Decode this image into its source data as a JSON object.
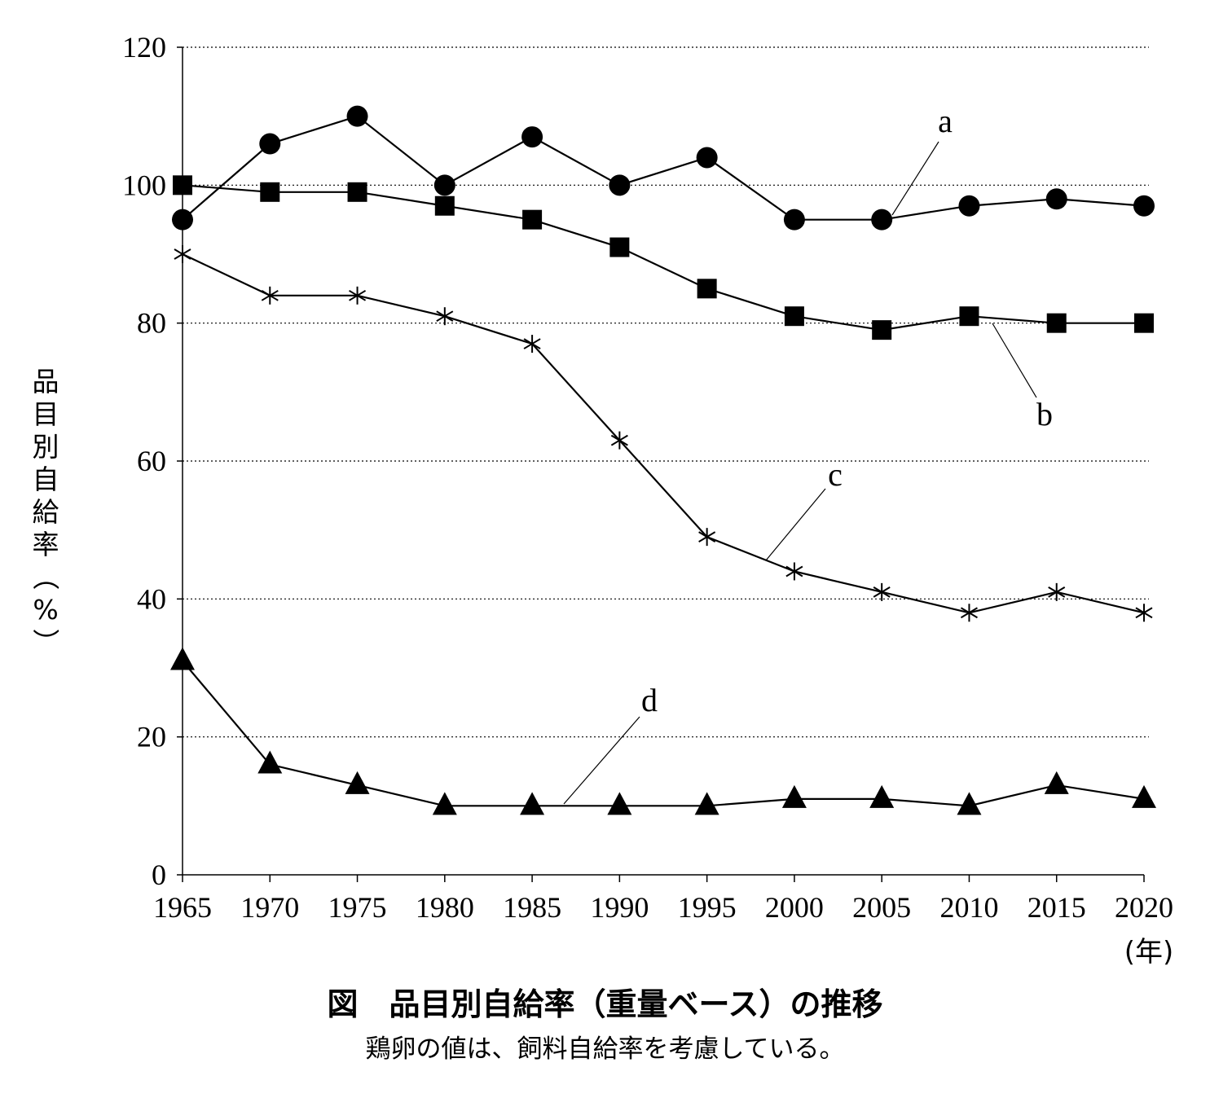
{
  "chart_data": {
    "type": "line",
    "title": "図　品目別自給率（重量ベース）の推移",
    "note": "鶏卵の値は、飼料自給率を考慮している。",
    "ylabel": "品目別自給率（%）",
    "xunit": "(年)",
    "x": [
      1965,
      1970,
      1975,
      1980,
      1985,
      1990,
      1995,
      2000,
      2005,
      2010,
      2015,
      2020
    ],
    "ylim": [
      0,
      120
    ],
    "yticks": [
      0,
      20,
      40,
      60,
      80,
      100,
      120
    ],
    "grid": true,
    "series": [
      {
        "name": "a",
        "marker": "circle",
        "values": [
          95,
          106,
          110,
          100,
          107,
          100,
          104,
          95,
          95,
          97,
          98,
          97
        ]
      },
      {
        "name": "b",
        "marker": "square",
        "values": [
          100,
          99,
          99,
          97,
          95,
          91,
          85,
          81,
          79,
          81,
          80,
          80
        ]
      },
      {
        "name": "c",
        "marker": "asterisk",
        "values": [
          90,
          84,
          84,
          81,
          77,
          63,
          49,
          44,
          41,
          38,
          41,
          38
        ]
      },
      {
        "name": "d",
        "marker": "triangle",
        "values": [
          31,
          16,
          13,
          10,
          10,
          10,
          10,
          11,
          11,
          10,
          13,
          11
        ]
      }
    ]
  }
}
